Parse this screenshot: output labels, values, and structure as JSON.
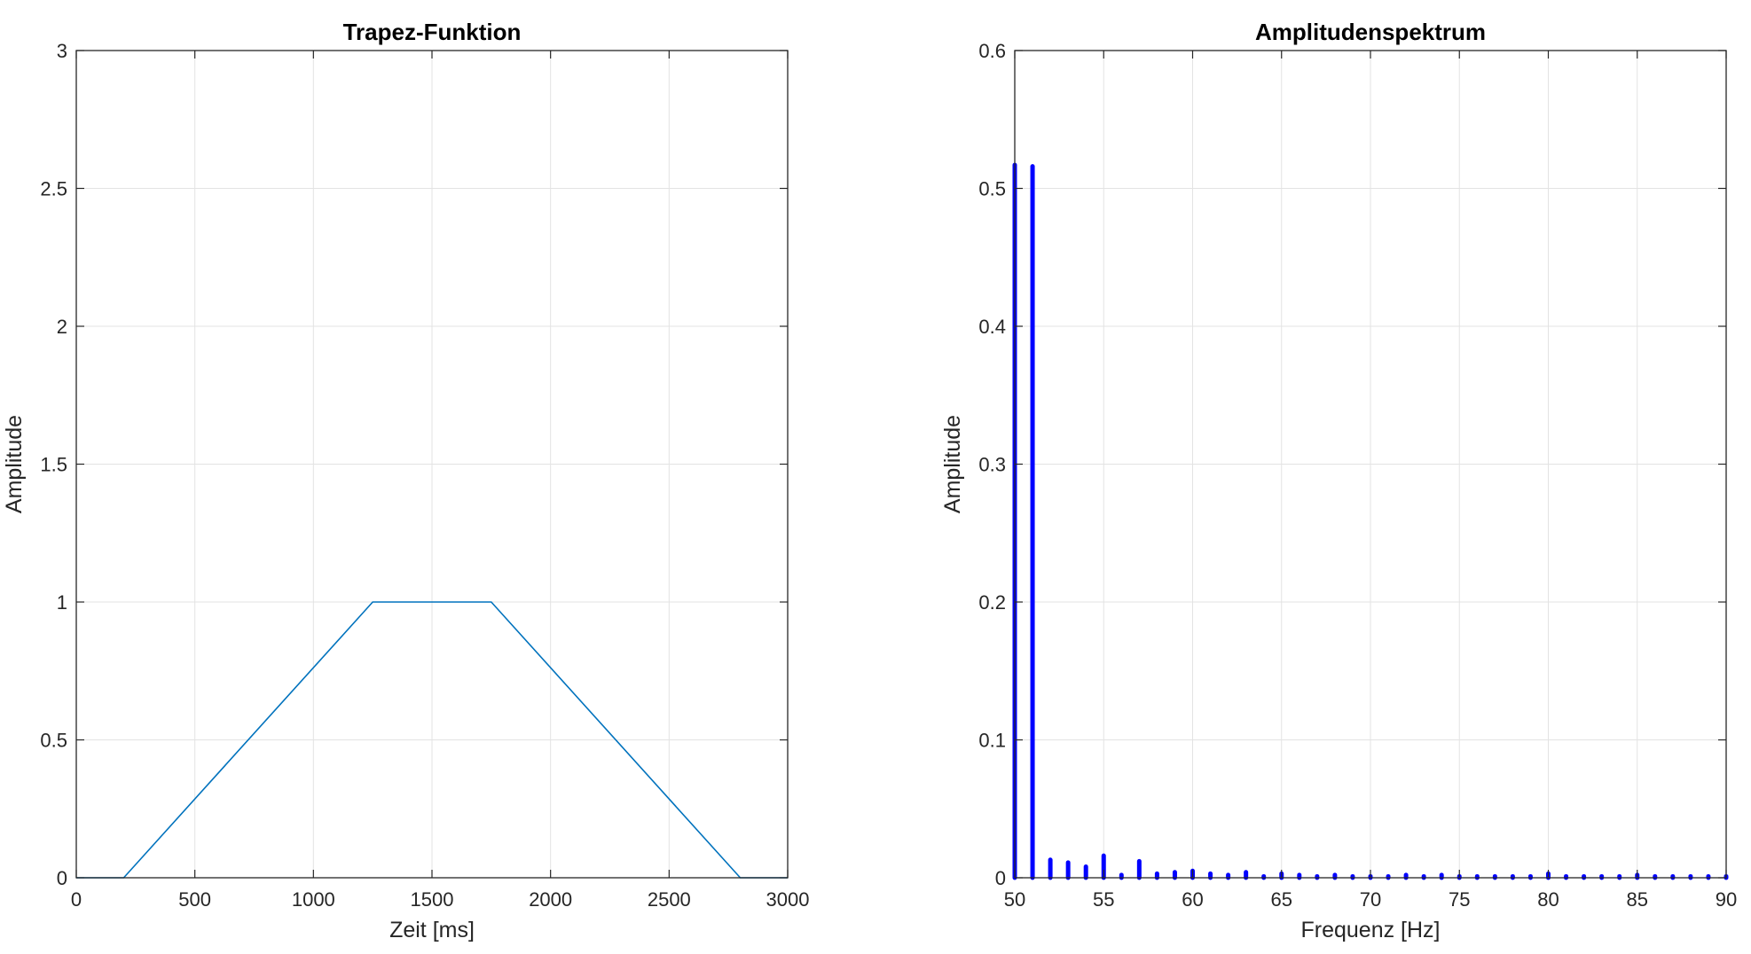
{
  "chart_data": [
    {
      "type": "line",
      "title": "Trapez-Funktion",
      "xlabel": "Zeit [ms]",
      "ylabel": "Amplitude",
      "xlim": [
        0,
        3000
      ],
      "ylim": [
        0,
        3
      ],
      "xticks": [
        0,
        500,
        1000,
        1500,
        2000,
        2500,
        3000
      ],
      "xtick_labels": [
        "0",
        "500",
        "1000",
        "1500",
        "2000",
        "2500",
        "3000"
      ],
      "yticks": [
        0,
        0.5,
        1,
        1.5,
        2,
        2.5,
        3
      ],
      "ytick_labels": [
        "0",
        "0.5",
        "1",
        "1.5",
        "2",
        "2.5",
        "3"
      ],
      "grid": true,
      "color": "#0072BD",
      "series": [
        {
          "x": [
            0,
            200,
            1250,
            1750,
            2800,
            3000
          ],
          "y": [
            0,
            0,
            1,
            1,
            0,
            0
          ]
        }
      ]
    },
    {
      "type": "bar",
      "title": "Amplitudenspektrum",
      "xlabel": "Frequenz [Hz]",
      "ylabel": "Amplitude",
      "xlim": [
        50,
        90
      ],
      "ylim": [
        0,
        0.6
      ],
      "xticks": [
        50,
        55,
        60,
        65,
        70,
        75,
        80,
        85,
        90
      ],
      "xtick_labels": [
        "50",
        "55",
        "60",
        "65",
        "70",
        "75",
        "80",
        "85",
        "90"
      ],
      "yticks": [
        0,
        0.1,
        0.2,
        0.3,
        0.4,
        0.5,
        0.6
      ],
      "ytick_labels": [
        "0",
        "0.1",
        "0.2",
        "0.3",
        "0.4",
        "0.5",
        "0.6"
      ],
      "grid": true,
      "color": "#0000FF",
      "series": [
        {
          "x": [
            50,
            51,
            52,
            53,
            54,
            55,
            56,
            57,
            58,
            59,
            60,
            61,
            62,
            63,
            64,
            65,
            66,
            67,
            68,
            69,
            70,
            71,
            72,
            73,
            74,
            75,
            76,
            77,
            78,
            79,
            80,
            81,
            82,
            83,
            84,
            85,
            86,
            87,
            88,
            89,
            90
          ],
          "y": [
            0.517,
            0.516,
            0.013,
            0.011,
            0.008,
            0.016,
            0.002,
            0.012,
            0.003,
            0.004,
            0.005,
            0.003,
            0.002,
            0.004,
            0.001,
            0.003,
            0.002,
            0.001,
            0.002,
            0.001,
            0.001,
            0.001,
            0.002,
            0.001,
            0.002,
            0.001,
            0.001,
            0.001,
            0.001,
            0.001,
            0.003,
            0.001,
            0.001,
            0.001,
            0.001,
            0.002,
            0.001,
            0.001,
            0.001,
            0.001,
            0.001
          ]
        }
      ]
    }
  ]
}
